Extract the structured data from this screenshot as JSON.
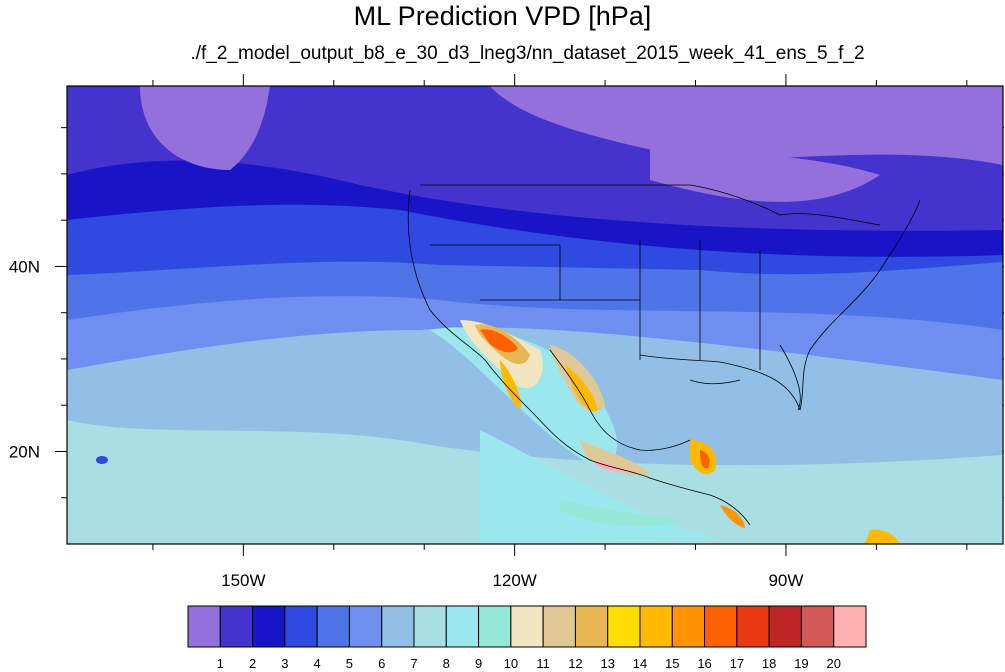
{
  "title": "ML Prediction VPD [hPa]",
  "subtitle": "./f_2_model_output_b8_e_30_d3_lneg3/nn_dataset_2015_week_41_ens_5_f_2",
  "map": {
    "lon_range": [
      -169.5,
      -66
    ],
    "lat_range": [
      10,
      59.5
    ],
    "lon_ticks": [
      {
        "lon": -150,
        "label": "150W"
      },
      {
        "lon": -120,
        "label": "120W"
      },
      {
        "lon": -90,
        "label": "90W"
      }
    ],
    "lat_ticks": [
      {
        "lat": 40,
        "label": "40N"
      },
      {
        "lat": 20,
        "label": "20N"
      }
    ]
  },
  "colorbar": {
    "labels": [
      "1",
      "2",
      "3",
      "4",
      "5",
      "6",
      "7",
      "8",
      "9",
      "10",
      "11",
      "12",
      "13",
      "14",
      "15",
      "16",
      "17",
      "18",
      "19",
      "20"
    ],
    "colors": [
      "#9370db",
      "#4433cc",
      "#1a14c8",
      "#2f4ae0",
      "#4f74e8",
      "#6e8ff0",
      "#92bfe6",
      "#a9dfe4",
      "#9ae8ee",
      "#93e8d6",
      "#f2e6c2",
      "#e0c796",
      "#e8b652",
      "#ffdd00",
      "#ffba00",
      "#ff9400",
      "#ff6000",
      "#e93a12",
      "#be2626",
      "#d25858",
      "#ffb0b0"
    ]
  }
}
